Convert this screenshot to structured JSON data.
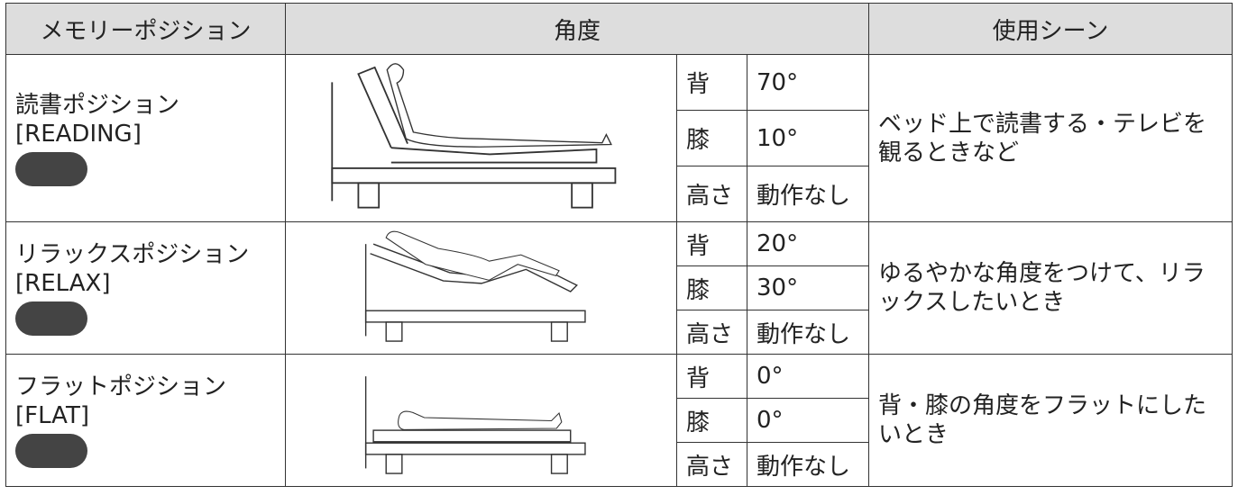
{
  "table": {
    "header": [
      "メモリーポジション",
      "角度",
      "使用シーン"
    ],
    "rows": [
      {
        "name": "読書ポジション",
        "name_en": "[READING]",
        "angles": [
          [
            "背",
            "70°"
          ],
          [
            "膝",
            "10°"
          ],
          [
            "高さ",
            "動作なし"
          ]
        ],
        "scene": "ベッド上で読書する・テレビを観るときなど"
      },
      {
        "name": "リラックスポジション",
        "name_en": "[RELAX]",
        "angles": [
          [
            "背",
            "20°"
          ],
          [
            "膝",
            "30°"
          ],
          [
            "高さ",
            "動作なし"
          ]
        ],
        "scene": "ゆるやかな角度をつけて、リラックスしたいとき"
      },
      {
        "name": "フラットポジション",
        "name_en": "[FLAT]",
        "angles": [
          [
            "背",
            "0°"
          ],
          [
            "膝",
            "0°"
          ],
          [
            "高さ",
            "動作なし"
          ]
        ],
        "scene": "背・膝の角度をフラットにしたいとき"
      }
    ]
  }
}
